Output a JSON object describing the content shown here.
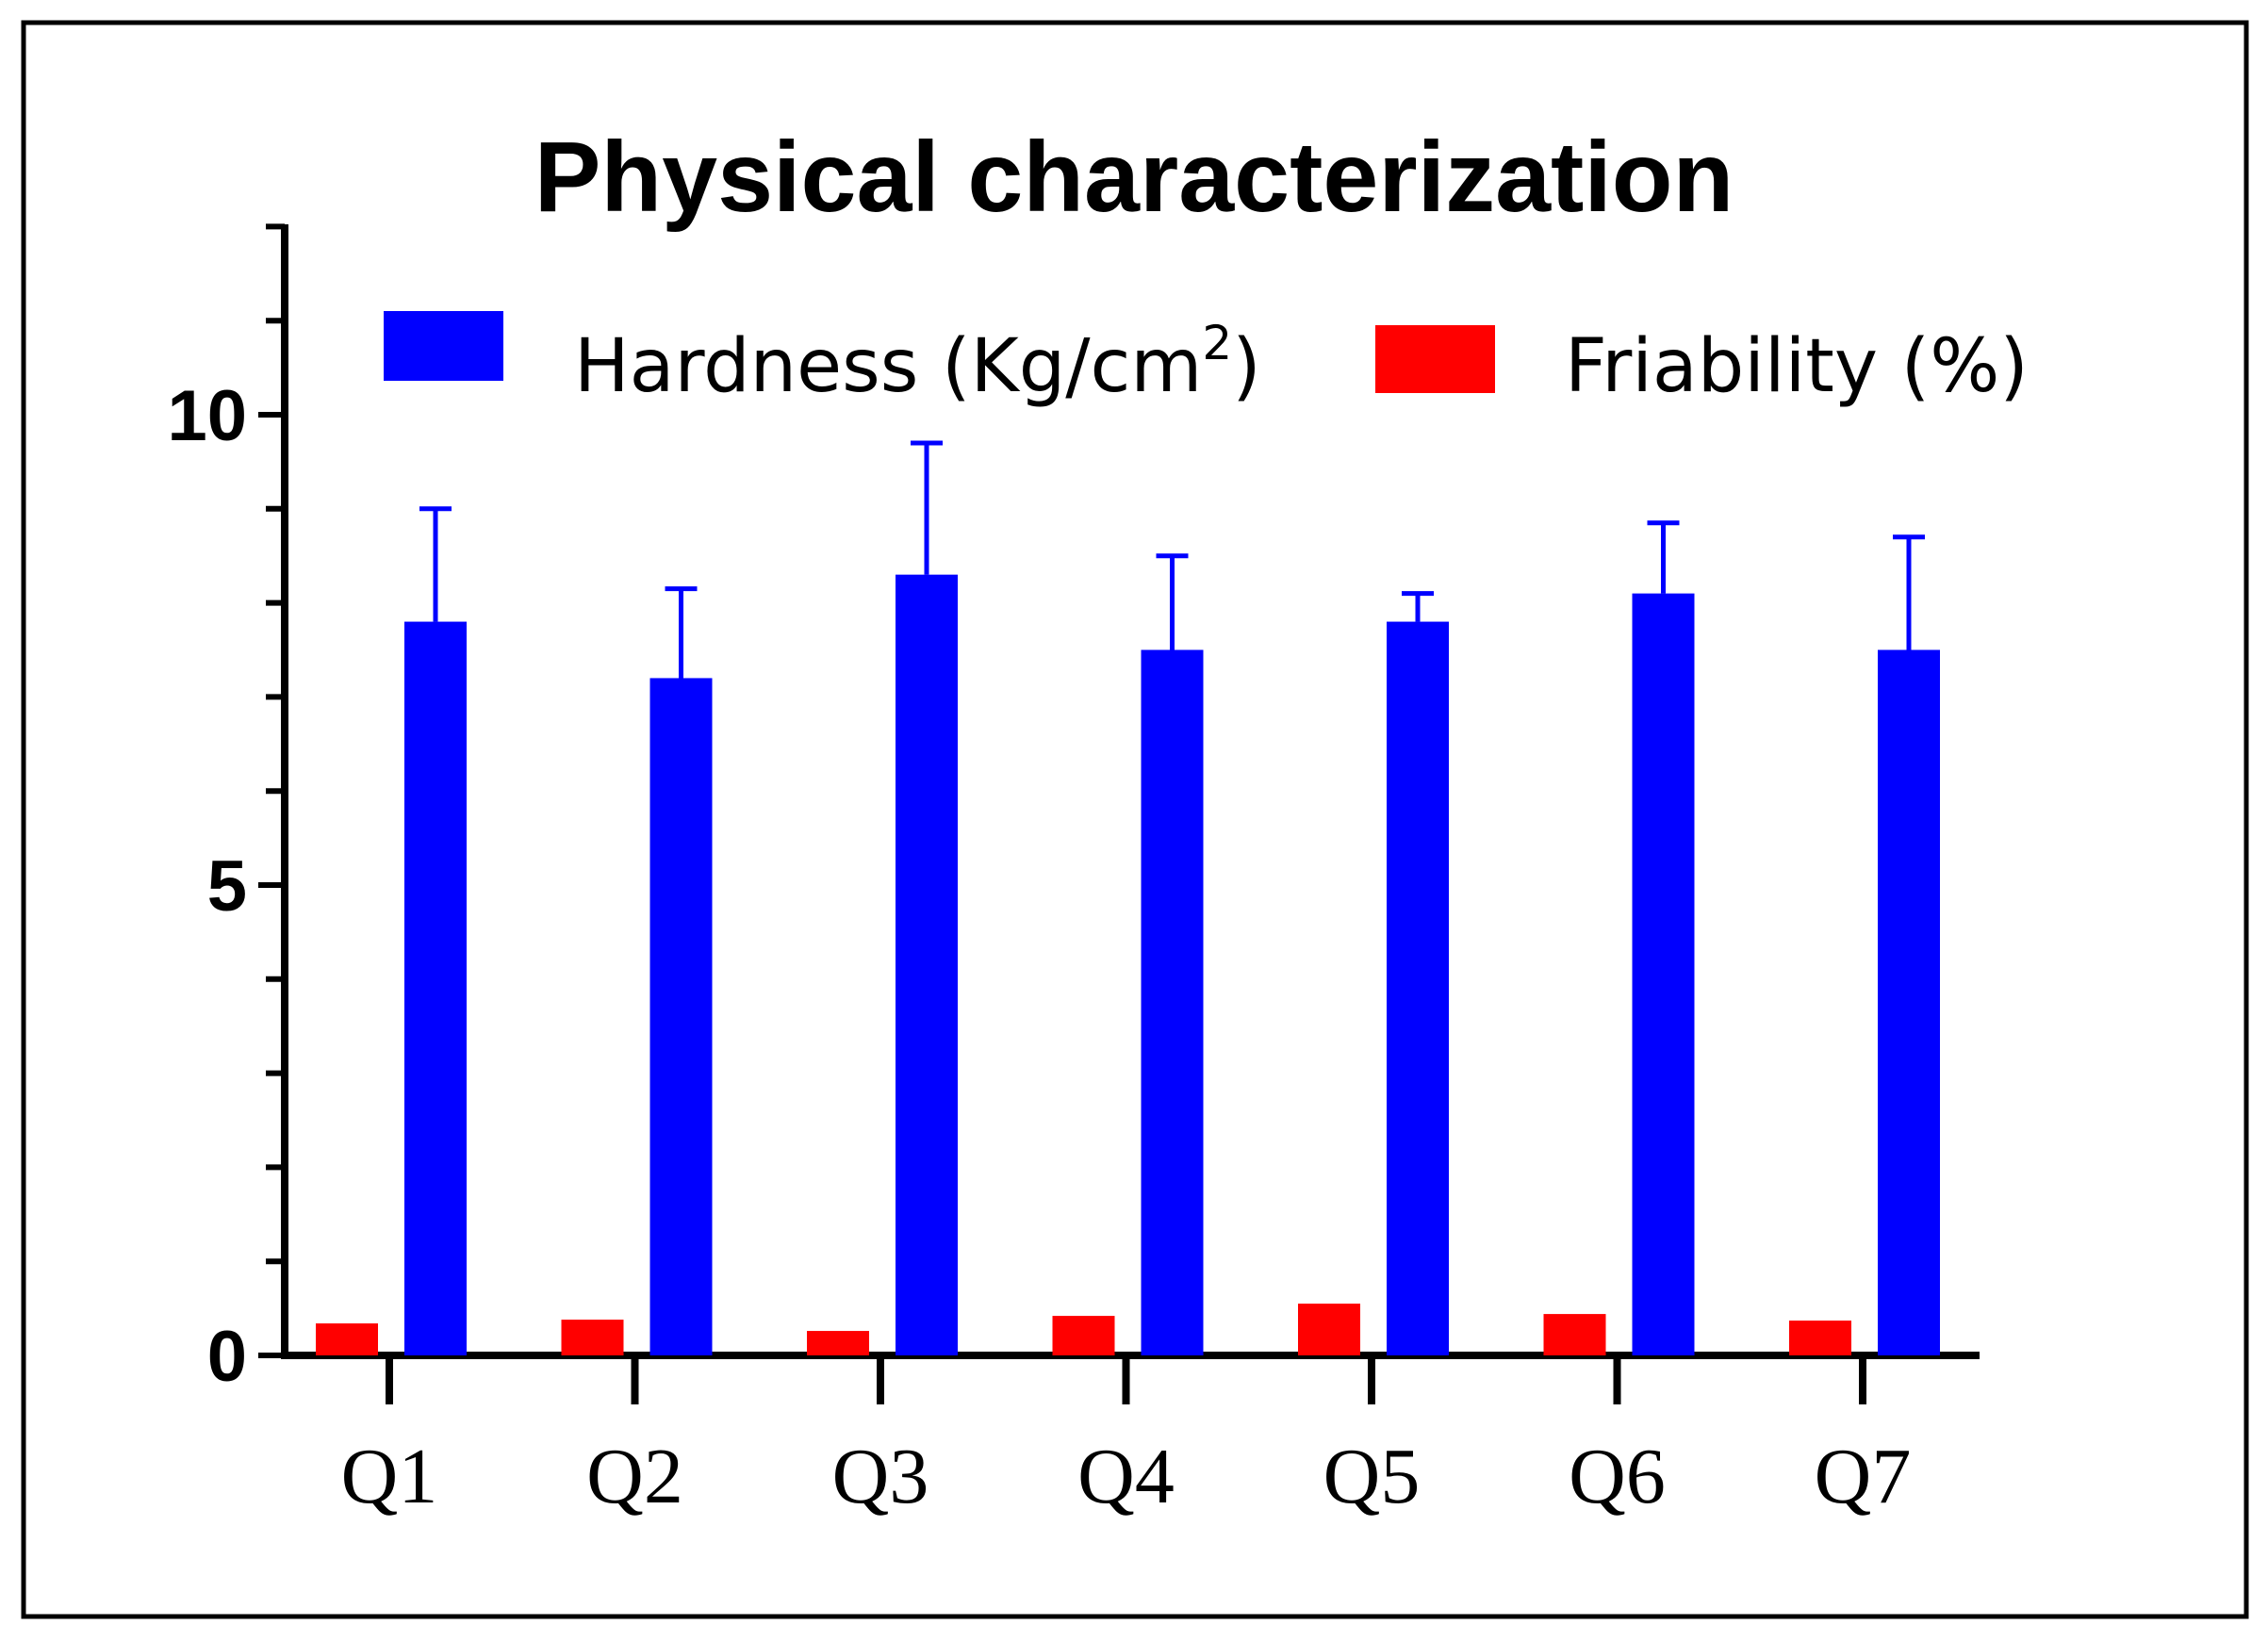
{
  "chart_data": {
    "type": "bar",
    "title": "Physical characterization",
    "xlabel": "",
    "ylabel": "",
    "categories": [
      "Q1",
      "Q2",
      "Q3",
      "Q4",
      "Q5",
      "Q6",
      "Q7"
    ],
    "ylim": [
      0,
      12
    ],
    "y_ticks": [
      "0",
      "5",
      "10"
    ],
    "grid": false,
    "legend_position": "top",
    "series": [
      {
        "name": "Friability (%)",
        "legend_base": "Friability (%)",
        "color": "#ff0000",
        "values": [
          0.34,
          0.38,
          0.26,
          0.42,
          0.55,
          0.44,
          0.37
        ]
      },
      {
        "name": "Hardness (Kg/cm2)",
        "legend_base": "Hardness (Kg/cm",
        "legend_sup": "2",
        "legend_tail": ")",
        "color": "#0000ff",
        "values": [
          7.8,
          7.2,
          8.3,
          7.5,
          7.8,
          8.1,
          7.5
        ],
        "error_plus": [
          1.2,
          0.95,
          1.4,
          1.0,
          0.3,
          0.75,
          1.2
        ]
      }
    ]
  }
}
